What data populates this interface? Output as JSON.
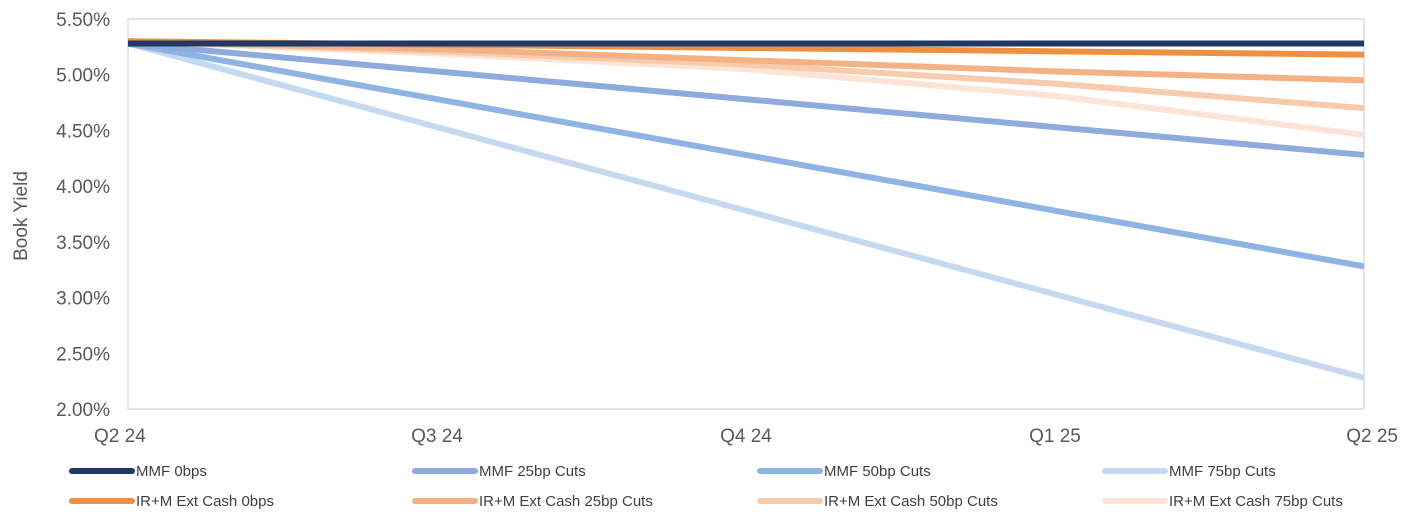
{
  "chart_data": {
    "type": "line",
    "title": "",
    "xlabel": "",
    "ylabel": "Book Yield",
    "categories": [
      "Q2 24",
      "Q3 24",
      "Q4 24",
      "Q1 25",
      "Q2 25"
    ],
    "y_tick_labels": [
      "2.00%",
      "2.50%",
      "3.00%",
      "3.50%",
      "4.00%",
      "4.50%",
      "5.00%",
      "5.50%"
    ],
    "ylim": [
      2.0,
      5.5
    ],
    "grid": false,
    "legend_position": "bottom",
    "series": [
      {
        "name": "MMF 0bps",
        "color": "#203864",
        "values": [
          5.28,
          5.28,
          5.28,
          5.28,
          5.28
        ]
      },
      {
        "name": "MMF 25bp Cuts",
        "color": "#8FAADC",
        "values": [
          5.28,
          5.03,
          4.78,
          4.53,
          4.28
        ]
      },
      {
        "name": "MMF 50bp Cuts",
        "color": "#8EB4E3",
        "values": [
          5.28,
          4.78,
          4.28,
          3.78,
          3.28
        ]
      },
      {
        "name": "MMF 75bp Cuts",
        "color": "#C5D9F1",
        "values": [
          5.28,
          4.53,
          3.78,
          3.03,
          2.28
        ]
      },
      {
        "name": "IR+M Ext Cash 0bps",
        "color": "#F0903E",
        "values": [
          5.3,
          5.27,
          5.24,
          5.21,
          5.18
        ]
      },
      {
        "name": "IR+M Ext Cash 25bp Cuts",
        "color": "#F4B183",
        "values": [
          5.3,
          5.23,
          5.13,
          5.03,
          4.95
        ]
      },
      {
        "name": "IR+M Ext Cash 50bp Cuts",
        "color": "#F8CBAD",
        "values": [
          5.3,
          5.21,
          5.09,
          4.92,
          4.7
        ]
      },
      {
        "name": "IR+M Ext Cash 75bp Cuts",
        "color": "#FCE4D6",
        "values": [
          5.3,
          5.19,
          5.05,
          4.81,
          4.46
        ]
      }
    ]
  }
}
